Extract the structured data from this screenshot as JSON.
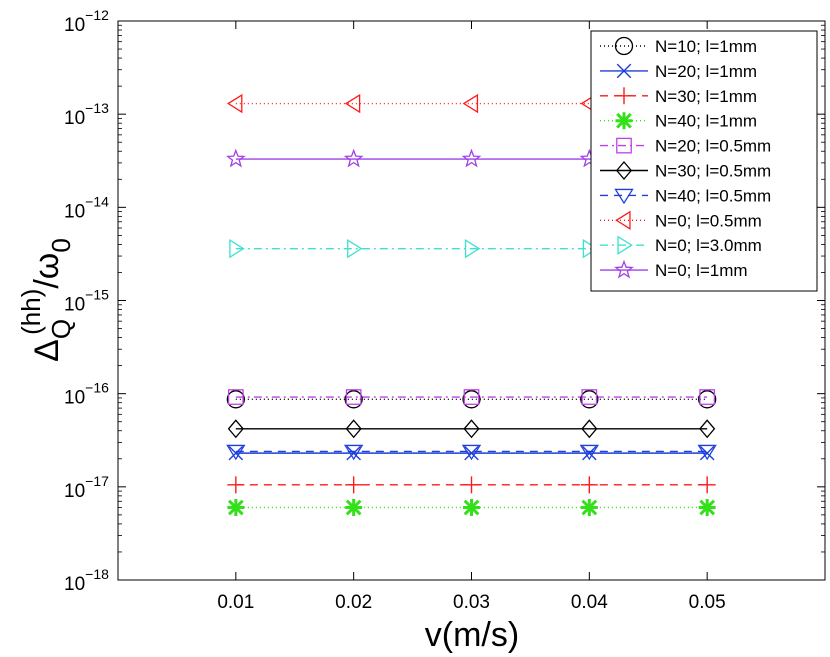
{
  "chart_data": {
    "type": "line",
    "xlabel": "v(m/s)",
    "ylabel": {
      "base": "Δ",
      "sub": "Q",
      "sup": "(hh)",
      "denominator": "/ω",
      "denominator_sub": "0"
    },
    "x_scale": "linear",
    "y_scale": "log",
    "xlim": [
      0,
      0.06
    ],
    "ylim": [
      1e-18,
      1e-12
    ],
    "x_ticks": [
      0.01,
      0.02,
      0.03,
      0.04,
      0.05
    ],
    "x_tick_labels": [
      "0.01",
      "0.02",
      "0.03",
      "0.04",
      "0.05"
    ],
    "y_ticks": [
      {
        "value": 1e-12,
        "base": "10",
        "exp": "−12"
      },
      {
        "value": 1e-13,
        "base": "10",
        "exp": "−13"
      },
      {
        "value": 1e-14,
        "base": "10",
        "exp": "−14"
      },
      {
        "value": 1e-15,
        "base": "10",
        "exp": "−15"
      },
      {
        "value": 1e-16,
        "base": "10",
        "exp": "−16"
      },
      {
        "value": 1e-17,
        "base": "10",
        "exp": "−17"
      },
      {
        "value": 1e-18,
        "base": "10",
        "exp": "−18"
      }
    ],
    "grid": false,
    "legend_position": "top-right",
    "x": [
      0.01,
      0.02,
      0.03,
      0.04,
      0.05
    ],
    "series": [
      {
        "name": "N=10; l=1mm",
        "values": [
          8.7e-17,
          8.7e-17,
          8.7e-17,
          8.7e-17,
          8.7e-17
        ],
        "color": "#000000",
        "dash": "1,3",
        "marker": "circle"
      },
      {
        "name": "N=20; l=1mm",
        "values": [
          2.3e-17,
          2.3e-17,
          2.3e-17,
          2.3e-17,
          2.3e-17
        ],
        "color": "#1f3fdc",
        "dash": "",
        "marker": "x"
      },
      {
        "name": "N=30; l=1mm",
        "values": [
          1.05e-17,
          1.05e-17,
          1.05e-17,
          1.05e-17,
          1.05e-17
        ],
        "color": "#ff1a1a",
        "dash": "8,6",
        "marker": "plus"
      },
      {
        "name": "N=40; l=1mm",
        "values": [
          6e-18,
          6e-18,
          6e-18,
          6e-18,
          6e-18
        ],
        "color": "#33e01a",
        "dash": "1,3",
        "marker": "asterisk"
      },
      {
        "name": "N=20; l=0.5mm",
        "values": [
          9.2e-17,
          9.2e-17,
          9.2e-17,
          9.2e-17,
          9.2e-17
        ],
        "color": "#c040e8",
        "dash": "8,4,2,4",
        "marker": "square"
      },
      {
        "name": "N=30; l=0.5mm",
        "values": [
          4.2e-17,
          4.2e-17,
          4.2e-17,
          4.2e-17,
          4.2e-17
        ],
        "color": "#000000",
        "dash": "",
        "marker": "diamond"
      },
      {
        "name": "N=40; l=0.5mm",
        "values": [
          2.4e-17,
          2.4e-17,
          2.4e-17,
          2.4e-17,
          2.4e-17
        ],
        "color": "#1f3fdc",
        "dash": "8,6",
        "marker": "triangle-down"
      },
      {
        "name": "N=0; l=0.5mm",
        "values": [
          1.3e-13,
          1.3e-13,
          1.3e-13,
          1.3e-13,
          1.3e-13
        ],
        "color": "#ff1a1a",
        "dash": "1,3",
        "marker": "triangle-left"
      },
      {
        "name": "N=0; l=3.0mm",
        "values": [
          3.6e-15,
          3.6e-15,
          3.6e-15,
          3.6e-15,
          3.6e-15
        ],
        "color": "#40e0d0",
        "dash": "8,4,2,4",
        "marker": "triangle-right"
      },
      {
        "name": "N=0; l=1mm",
        "values": [
          3.3e-14,
          3.3e-14,
          3.3e-14,
          3.3e-14,
          3.3e-14
        ],
        "color": "#a040e8",
        "dash": "",
        "marker": "star"
      }
    ]
  }
}
